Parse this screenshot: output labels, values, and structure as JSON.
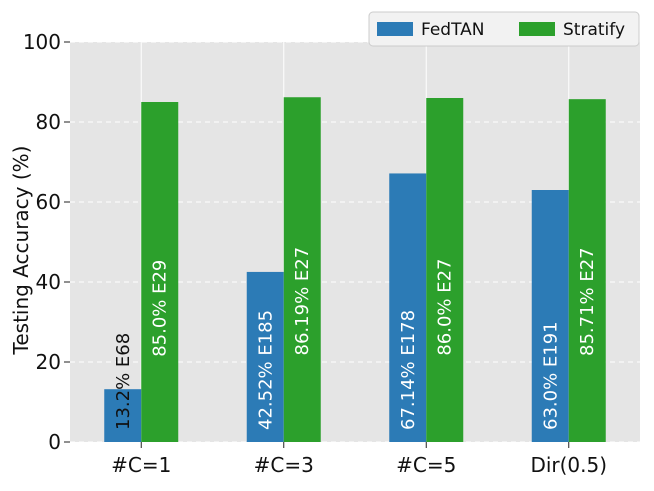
{
  "chart_data": {
    "type": "bar",
    "categories": [
      "#C=1",
      "#C=3",
      "#C=5",
      "Dir(0.5)"
    ],
    "series": [
      {
        "name": "FedTAN",
        "color": "#2c7bb6",
        "label_color": "#ffffff",
        "values": [
          13.2,
          42.52,
          67.14,
          63.0
        ],
        "labels": [
          "13.2% E68",
          "42.52% E185",
          "67.14% E178",
          "63.0% E191"
        ]
      },
      {
        "name": "Stratify",
        "color": "#2ca02c",
        "label_color": "#ffffff",
        "values": [
          85.0,
          86.19,
          86.0,
          85.71
        ],
        "labels": [
          "85.0% E29",
          "86.19% E27",
          "86.0% E27",
          "85.71% E27"
        ]
      }
    ],
    "ylabel": "Testing Accuracy (%)",
    "xlabel": "",
    "ylim": [
      0,
      100
    ],
    "yticks": [
      "0",
      "20",
      "40",
      "60",
      "80",
      "100"
    ],
    "grid": true,
    "legend_position": "top-right",
    "background": "#e5e5e5"
  }
}
